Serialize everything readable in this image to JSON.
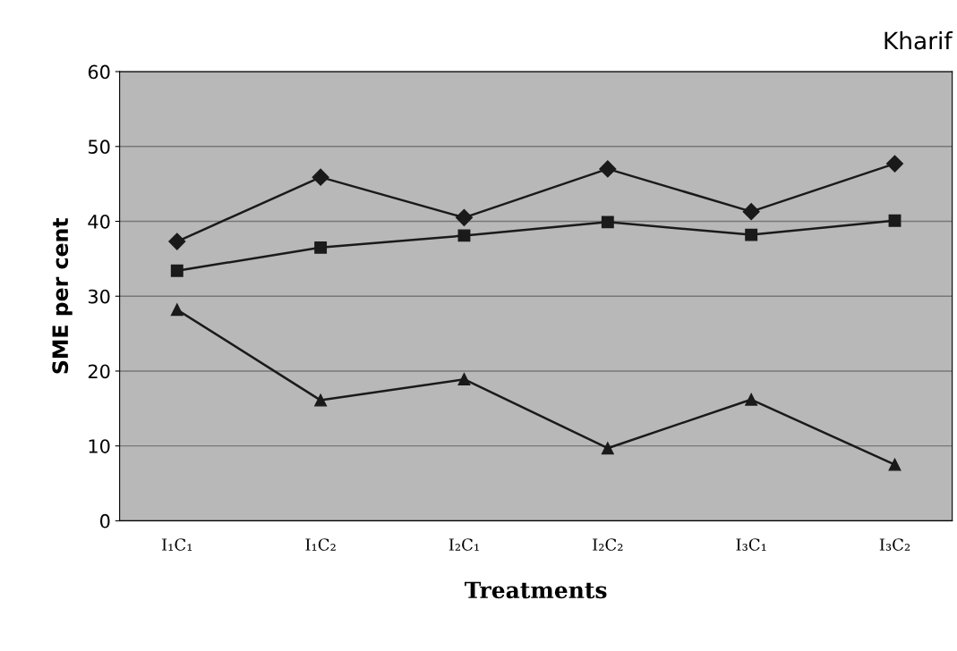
{
  "chart_data": {
    "type": "line",
    "title": "Kharif",
    "xlabel": "Treatments",
    "ylabel": "SME per cent",
    "categories": [
      "I₁C₁",
      "I₁C₂",
      "I₂C₁",
      "I₂C₂",
      "I₃C₁",
      "I₃C₂"
    ],
    "series": [
      {
        "color": "#1a1a1a",
        "marker": "diamond",
        "values": [
          37.3,
          45.9,
          40.5,
          47.0,
          41.3,
          47.7
        ]
      },
      {
        "color": "#1a1a1a",
        "marker": "square",
        "values": [
          33.4,
          36.5,
          38.1,
          39.9,
          38.2,
          40.1
        ]
      },
      {
        "color": "#1a1a1a",
        "marker": "triangle",
        "values": [
          28.2,
          16.1,
          18.9,
          9.7,
          16.2,
          7.5
        ]
      }
    ],
    "ylim": [
      0,
      60
    ],
    "yticks": [
      0,
      10,
      20,
      30,
      40,
      50,
      60
    ],
    "grid": "y",
    "legend": false,
    "line_style": "solid"
  }
}
